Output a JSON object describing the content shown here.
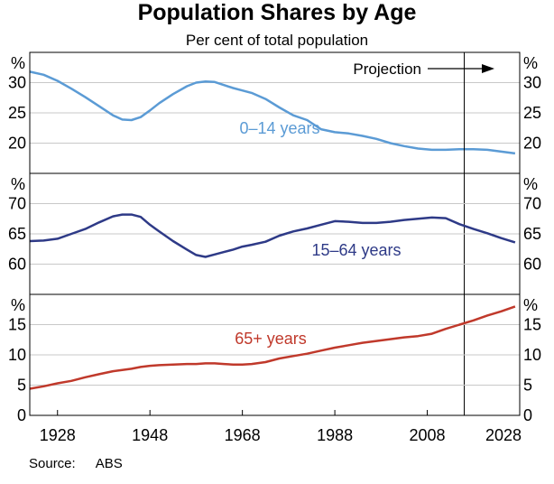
{
  "title": "Population Shares by Age",
  "subtitle": "Per cent of total population",
  "source_label": "Source:",
  "source_value": "ABS",
  "projection_label": "Projection",
  "colors": {
    "panel1": "#5b9bd5",
    "panel2": "#2e3a87",
    "panel3": "#c0392b",
    "grid": "#c8c8c8",
    "frame": "#000000"
  },
  "chart_data": [
    {
      "type": "line",
      "panel": 1,
      "unit_label": "%",
      "ylim": [
        15,
        35
      ],
      "yticks": [
        20,
        25,
        30
      ],
      "xlim": [
        1922,
        2028
      ],
      "series": [
        {
          "name": "0–14 years",
          "x": [
            1922,
            1925,
            1928,
            1931,
            1934,
            1937,
            1940,
            1942,
            1944,
            1946,
            1948,
            1950,
            1953,
            1956,
            1958,
            1960,
            1962,
            1964,
            1966,
            1968,
            1970,
            1973,
            1976,
            1979,
            1982,
            1985,
            1988,
            1991,
            1994,
            1997,
            2000,
            2003,
            2006,
            2009,
            2012,
            2015,
            2018,
            2021,
            2024,
            2027
          ],
          "y": [
            31.8,
            31.3,
            30.3,
            29.0,
            27.6,
            26.1,
            24.6,
            23.9,
            23.8,
            24.3,
            25.4,
            26.6,
            28.1,
            29.4,
            30.0,
            30.2,
            30.1,
            29.6,
            29.1,
            28.7,
            28.3,
            27.3,
            25.9,
            24.6,
            23.8,
            22.3,
            21.8,
            21.6,
            21.2,
            20.7,
            20.0,
            19.5,
            19.1,
            18.9,
            18.9,
            19.0,
            19.0,
            18.9,
            18.6,
            18.3
          ]
        }
      ]
    },
    {
      "type": "line",
      "panel": 2,
      "unit_label": "%",
      "ylim": [
        55,
        75
      ],
      "yticks": [
        60,
        65,
        70
      ],
      "xlim": [
        1922,
        2028
      ],
      "series": [
        {
          "name": "15–64 years",
          "x": [
            1922,
            1925,
            1928,
            1931,
            1934,
            1937,
            1940,
            1942,
            1944,
            1946,
            1948,
            1950,
            1953,
            1956,
            1958,
            1960,
            1962,
            1964,
            1966,
            1968,
            1970,
            1973,
            1976,
            1979,
            1982,
            1985,
            1988,
            1991,
            1994,
            1997,
            2000,
            2003,
            2006,
            2009,
            2012,
            2015,
            2018,
            2021,
            2024,
            2027
          ],
          "y": [
            63.8,
            63.9,
            64.2,
            65.0,
            65.8,
            66.9,
            67.9,
            68.2,
            68.2,
            67.8,
            66.5,
            65.4,
            63.8,
            62.4,
            61.5,
            61.2,
            61.6,
            62.0,
            62.4,
            62.9,
            63.2,
            63.7,
            64.7,
            65.4,
            65.9,
            66.5,
            67.1,
            67.0,
            66.8,
            66.8,
            67.0,
            67.3,
            67.5,
            67.7,
            67.6,
            66.6,
            65.8,
            65.1,
            64.3,
            63.6
          ]
        }
      ]
    },
    {
      "type": "line",
      "panel": 3,
      "unit_label": "%",
      "ylim": [
        0,
        20
      ],
      "yticks": [
        0,
        5,
        10,
        15
      ],
      "xlim": [
        1922,
        2028
      ],
      "xticks": [
        1928,
        1948,
        1968,
        1988,
        2008,
        2028
      ],
      "series": [
        {
          "name": "65+ years",
          "x": [
            1922,
            1925,
            1928,
            1931,
            1934,
            1937,
            1940,
            1942,
            1944,
            1946,
            1948,
            1950,
            1953,
            1956,
            1958,
            1960,
            1962,
            1964,
            1966,
            1968,
            1970,
            1973,
            1976,
            1979,
            1982,
            1985,
            1988,
            1991,
            1994,
            1997,
            2000,
            2003,
            2006,
            2009,
            2012,
            2015,
            2018,
            2021,
            2024,
            2027
          ],
          "y": [
            4.4,
            4.8,
            5.3,
            5.7,
            6.3,
            6.8,
            7.3,
            7.5,
            7.7,
            8.0,
            8.2,
            8.3,
            8.4,
            8.5,
            8.5,
            8.6,
            8.6,
            8.5,
            8.4,
            8.4,
            8.5,
            8.8,
            9.4,
            9.8,
            10.2,
            10.7,
            11.2,
            11.6,
            12.0,
            12.3,
            12.6,
            12.9,
            13.1,
            13.5,
            14.3,
            15.0,
            15.7,
            16.5,
            17.2,
            18.0
          ]
        }
      ]
    }
  ]
}
